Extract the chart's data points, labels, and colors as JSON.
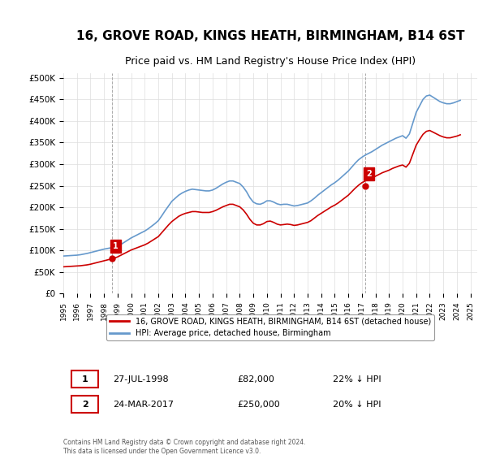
{
  "title": "16, GROVE ROAD, KINGS HEATH, BIRMINGHAM, B14 6ST",
  "subtitle": "Price paid vs. HM Land Registry's House Price Index (HPI)",
  "title_fontsize": 11,
  "subtitle_fontsize": 9,
  "ylabel_ticks": [
    "£0",
    "£50K",
    "£100K",
    "£150K",
    "£200K",
    "£250K",
    "£300K",
    "£350K",
    "£400K",
    "£450K",
    "£500K"
  ],
  "ytick_values": [
    0,
    50000,
    100000,
    150000,
    200000,
    250000,
    300000,
    350000,
    400000,
    450000,
    500000
  ],
  "ylim": [
    0,
    510000
  ],
  "xlim_start": 1995.0,
  "xlim_end": 2025.5,
  "background_color": "#ffffff",
  "plot_bg_color": "#ffffff",
  "grid_color": "#dddddd",
  "hpi_color": "#6699cc",
  "price_color": "#cc0000",
  "marker_color": "#cc0000",
  "sale1_x": 1998.57,
  "sale1_y": 82000,
  "sale1_label": "1",
  "sale2_x": 2017.23,
  "sale2_y": 250000,
  "sale2_label": "2",
  "annotation_box_color": "#cc0000",
  "legend_label_red": "16, GROVE ROAD, KINGS HEATH, BIRMINGHAM, B14 6ST (detached house)",
  "legend_label_blue": "HPI: Average price, detached house, Birmingham",
  "table_row1": [
    "1",
    "27-JUL-1998",
    "£82,000",
    "22% ↓ HPI"
  ],
  "table_row2": [
    "2",
    "24-MAR-2017",
    "£250,000",
    "20% ↓ HPI"
  ],
  "footer": "Contains HM Land Registry data © Crown copyright and database right 2024.\nThis data is licensed under the Open Government Licence v3.0.",
  "hpi_data_x": [
    1995.0,
    1995.25,
    1995.5,
    1995.75,
    1996.0,
    1996.25,
    1996.5,
    1996.75,
    1997.0,
    1997.25,
    1997.5,
    1997.75,
    1998.0,
    1998.25,
    1998.5,
    1998.75,
    1999.0,
    1999.25,
    1999.5,
    1999.75,
    2000.0,
    2000.25,
    2000.5,
    2000.75,
    2001.0,
    2001.25,
    2001.5,
    2001.75,
    2002.0,
    2002.25,
    2002.5,
    2002.75,
    2003.0,
    2003.25,
    2003.5,
    2003.75,
    2004.0,
    2004.25,
    2004.5,
    2004.75,
    2005.0,
    2005.25,
    2005.5,
    2005.75,
    2006.0,
    2006.25,
    2006.5,
    2006.75,
    2007.0,
    2007.25,
    2007.5,
    2007.75,
    2008.0,
    2008.25,
    2008.5,
    2008.75,
    2009.0,
    2009.25,
    2009.5,
    2009.75,
    2010.0,
    2010.25,
    2010.5,
    2010.75,
    2011.0,
    2011.25,
    2011.5,
    2011.75,
    2012.0,
    2012.25,
    2012.5,
    2012.75,
    2013.0,
    2013.25,
    2013.5,
    2013.75,
    2014.0,
    2014.25,
    2014.5,
    2014.75,
    2015.0,
    2015.25,
    2015.5,
    2015.75,
    2016.0,
    2016.25,
    2016.5,
    2016.75,
    2017.0,
    2017.25,
    2017.5,
    2017.75,
    2018.0,
    2018.25,
    2018.5,
    2018.75,
    2019.0,
    2019.25,
    2019.5,
    2019.75,
    2020.0,
    2020.25,
    2020.5,
    2020.75,
    2021.0,
    2021.25,
    2021.5,
    2021.75,
    2022.0,
    2022.25,
    2022.5,
    2022.75,
    2023.0,
    2023.25,
    2023.5,
    2023.75,
    2024.0,
    2024.25
  ],
  "hpi_data_y": [
    87000,
    87500,
    88000,
    88500,
    89000,
    90000,
    91500,
    93000,
    95000,
    97000,
    99000,
    101000,
    103000,
    104500,
    106000,
    107500,
    110000,
    114000,
    119000,
    124000,
    129000,
    133000,
    137000,
    141000,
    145000,
    150000,
    156000,
    162000,
    169000,
    180000,
    192000,
    203000,
    214000,
    221000,
    228000,
    233000,
    237000,
    240000,
    242000,
    241000,
    240000,
    239000,
    238000,
    238000,
    240000,
    244000,
    249000,
    254000,
    258000,
    261000,
    261000,
    258000,
    255000,
    247000,
    236000,
    222000,
    212000,
    208000,
    207000,
    210000,
    215000,
    215000,
    212000,
    208000,
    206000,
    207000,
    207000,
    205000,
    203000,
    204000,
    206000,
    208000,
    210000,
    215000,
    221000,
    228000,
    234000,
    240000,
    246000,
    252000,
    257000,
    263000,
    270000,
    277000,
    284000,
    293000,
    302000,
    310000,
    316000,
    321000,
    325000,
    329000,
    334000,
    339000,
    344000,
    348000,
    352000,
    356000,
    360000,
    363000,
    366000,
    360000,
    370000,
    395000,
    420000,
    435000,
    450000,
    458000,
    460000,
    455000,
    450000,
    445000,
    442000,
    440000,
    440000,
    442000,
    445000,
    448000
  ],
  "price_data_x": [
    1995.0,
    1995.25,
    1995.5,
    1995.75,
    1996.0,
    1996.25,
    1996.5,
    1996.75,
    1997.0,
    1997.25,
    1997.5,
    1997.75,
    1998.0,
    1998.25,
    1998.5,
    1998.75,
    1999.0,
    1999.25,
    1999.5,
    1999.75,
    2000.0,
    2000.25,
    2000.5,
    2000.75,
    2001.0,
    2001.25,
    2001.5,
    2001.75,
    2002.0,
    2002.25,
    2002.5,
    2002.75,
    2003.0,
    2003.25,
    2003.5,
    2003.75,
    2004.0,
    2004.25,
    2004.5,
    2004.75,
    2005.0,
    2005.25,
    2005.5,
    2005.75,
    2006.0,
    2006.25,
    2006.5,
    2006.75,
    2007.0,
    2007.25,
    2007.5,
    2007.75,
    2008.0,
    2008.25,
    2008.5,
    2008.75,
    2009.0,
    2009.25,
    2009.5,
    2009.75,
    2010.0,
    2010.25,
    2010.5,
    2010.75,
    2011.0,
    2011.25,
    2011.5,
    2011.75,
    2012.0,
    2012.25,
    2012.5,
    2012.75,
    2013.0,
    2013.25,
    2013.5,
    2013.75,
    2014.0,
    2014.25,
    2014.5,
    2014.75,
    2015.0,
    2015.25,
    2015.5,
    2015.75,
    2016.0,
    2016.25,
    2016.5,
    2016.75,
    2017.0,
    2017.25,
    2017.5,
    2017.75,
    2018.0,
    2018.25,
    2018.5,
    2018.75,
    2019.0,
    2019.25,
    2019.5,
    2019.75,
    2020.0,
    2020.25,
    2020.5,
    2020.75,
    2021.0,
    2021.25,
    2021.5,
    2021.75,
    2022.0,
    2022.25,
    2022.5,
    2022.75,
    2023.0,
    2023.25,
    2023.5,
    2023.75,
    2024.0,
    2024.25
  ],
  "price_data_y": [
    62000,
    62500,
    63000,
    63500,
    64000,
    64500,
    65500,
    66500,
    68000,
    70000,
    72000,
    74000,
    76000,
    78000,
    80000,
    82000,
    85000,
    89000,
    93000,
    97000,
    101000,
    104000,
    107000,
    110000,
    113000,
    117000,
    122000,
    127000,
    132000,
    141000,
    150000,
    159000,
    167000,
    173000,
    179000,
    183000,
    186000,
    188000,
    190000,
    190000,
    189000,
    188000,
    188000,
    188000,
    190000,
    193000,
    197000,
    201000,
    204000,
    207000,
    207000,
    204000,
    201000,
    194000,
    184000,
    172000,
    163000,
    159000,
    159000,
    162000,
    167000,
    168000,
    165000,
    161000,
    159000,
    160000,
    161000,
    160000,
    158000,
    159000,
    161000,
    163000,
    165000,
    169000,
    175000,
    181000,
    186000,
    191000,
    196000,
    201000,
    205000,
    210000,
    216000,
    222000,
    228000,
    236000,
    244000,
    251000,
    257000,
    261000,
    265000,
    268000,
    272000,
    276000,
    280000,
    283000,
    286000,
    290000,
    293000,
    296000,
    298000,
    293000,
    302000,
    323000,
    344000,
    357000,
    369000,
    376000,
    378000,
    374000,
    370000,
    366000,
    363000,
    361000,
    361000,
    363000,
    365000,
    368000
  ]
}
